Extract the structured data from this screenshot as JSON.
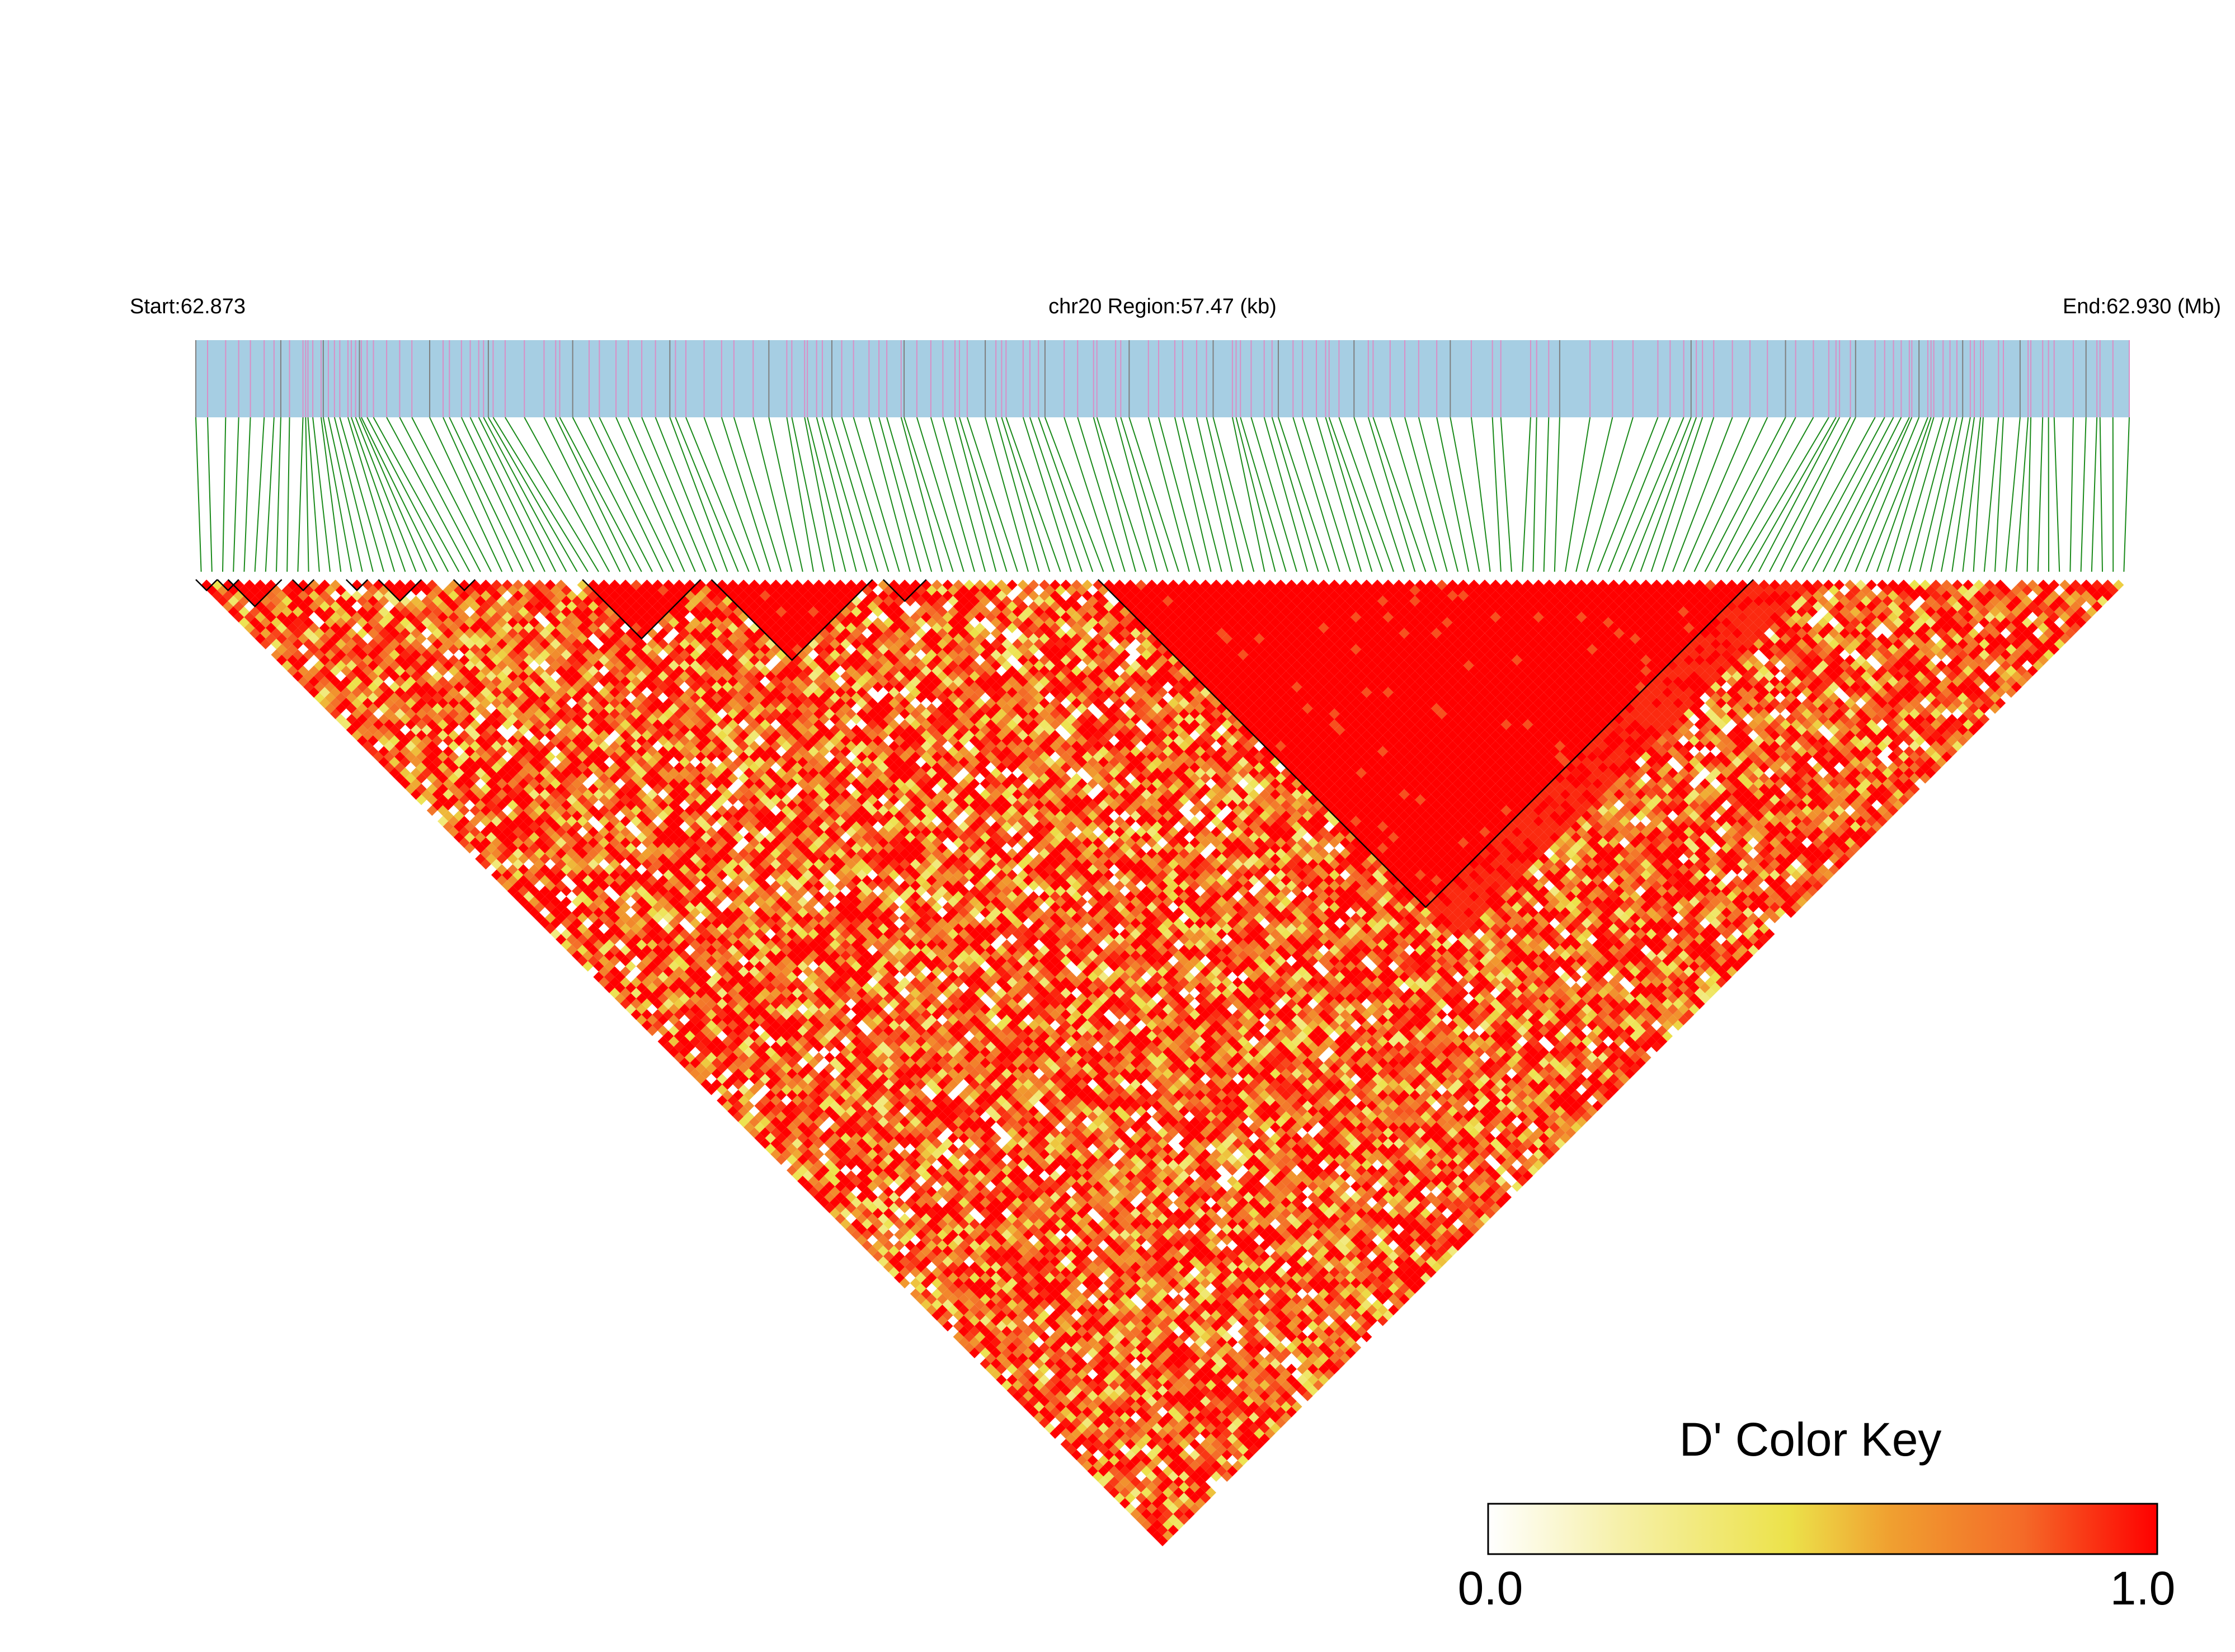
{
  "chart_data": {
    "type": "heatmap",
    "subtype": "ld-triangle",
    "header": {
      "start_label": "Start:62.873",
      "region_label": "chr20 Region:57.47 (kb)",
      "end_label": "End:62.930 (Mb)"
    },
    "region": {
      "chromosome": "chr20",
      "start_mb": 62.873,
      "end_mb": 62.93,
      "length_kb": 57.47
    },
    "gene_track_color": "#a6cee3",
    "snp_mark_colors": [
      "#d98fc6",
      "#7f7f7f"
    ],
    "connector_color": "#1a8a1a",
    "snp_count": 180,
    "value_metric": "D'",
    "haplotype_blocks_snp_ranges": [
      [
        0,
        1
      ],
      [
        2,
        3
      ],
      [
        3,
        7
      ],
      [
        9,
        10
      ],
      [
        14,
        15
      ],
      [
        17,
        20
      ],
      [
        24,
        25
      ],
      [
        36,
        46
      ],
      [
        48,
        62
      ],
      [
        64,
        67
      ],
      [
        84,
        144
      ]
    ],
    "color_key": {
      "title": "D' Color Key",
      "min_label": "0.0",
      "max_label": "1.0",
      "range": [
        0.0,
        1.0
      ],
      "gradient": [
        "#ffffff",
        "#f6f0a8",
        "#ece24a",
        "#f0a030",
        "#f46a28",
        "#ff0000"
      ]
    },
    "matrix_description_pattern": {
      "strong_ld_blocks_value": 1.0,
      "mixed_region_mean": 0.75
    }
  }
}
